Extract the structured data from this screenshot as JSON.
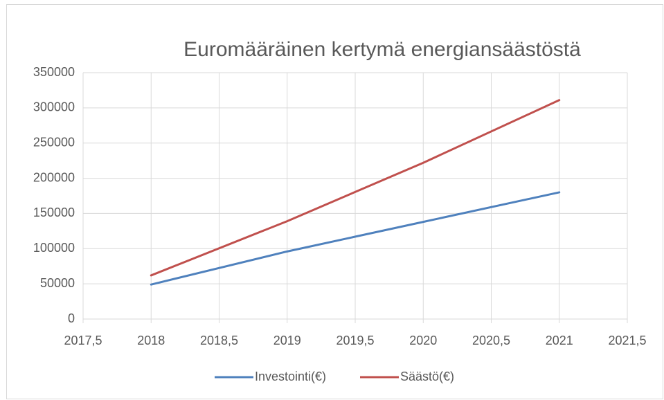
{
  "chart_data": {
    "type": "line",
    "title": "Euromääräinen kertymä energiansäästöstä",
    "x": [
      2018,
      2019,
      2020,
      2021
    ],
    "series": [
      {
        "name": "Investointi(€)",
        "color": "#4f81bd",
        "values": [
          49000,
          96000,
          138000,
          180000
        ]
      },
      {
        "name": "Säästö(€)",
        "color": "#c0504d",
        "values": [
          62000,
          139000,
          222000,
          311000
        ]
      }
    ],
    "xlim": [
      2017.5,
      2021.5
    ],
    "xticks": [
      {
        "value": 2017.5,
        "label": "2017,5"
      },
      2018,
      {
        "value": 2018.5,
        "label": "2018,5"
      },
      2019,
      {
        "value": 2019.5,
        "label": "2019,5"
      },
      2020,
      {
        "value": 2020.5,
        "label": "2020,5"
      },
      2021,
      {
        "value": 2021.5,
        "label": "2021,5"
      }
    ],
    "ylim": [
      0,
      350000
    ],
    "yticks": [
      0,
      50000,
      100000,
      150000,
      200000,
      250000,
      300000,
      350000
    ],
    "grid": true,
    "legend": "bottom"
  }
}
